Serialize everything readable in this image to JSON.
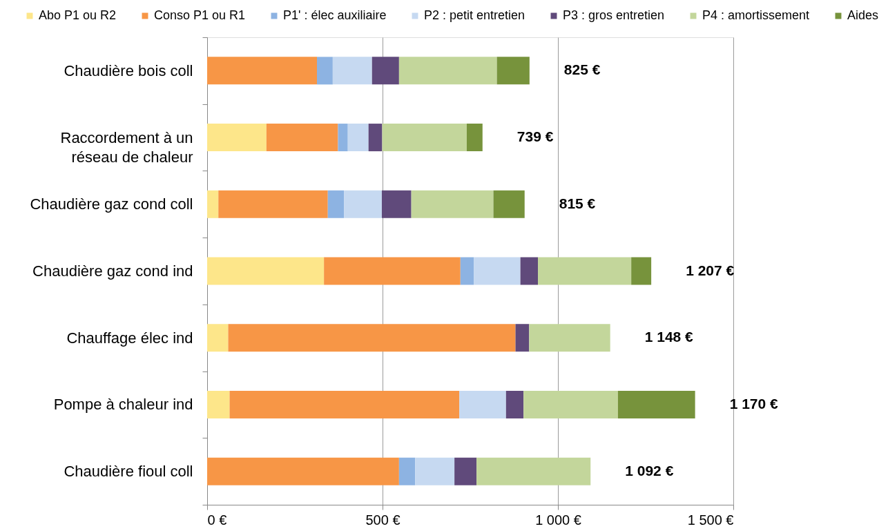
{
  "chart_data": {
    "type": "bar",
    "orientation": "horizontal",
    "stacked": true,
    "categories": [
      "Chaudière bois coll",
      "Raccordement à un réseau de chaleur",
      "Chaudière gaz cond coll",
      "Chaudière gaz cond ind",
      "Chauffage élec ind",
      "Pompe à chaleur ind",
      "Chaudière fioul coll"
    ],
    "series": [
      {
        "name": "Abo P1 ou R2",
        "color": "#fde68a",
        "values": [
          null,
          169,
          32,
          333,
          60,
          64,
          null
        ]
      },
      {
        "name": "Conso P1 ou R1",
        "color": "#f79646",
        "values": [
          313,
          204,
          312,
          389,
          819,
          655,
          547
        ]
      },
      {
        "name": "P1' : élec auxiliaire",
        "color": "#8db3e2",
        "values": [
          45,
          28,
          46,
          38,
          null,
          null,
          46
        ]
      },
      {
        "name": "P2 : petit entretien",
        "color": "#c6d9f1",
        "values": [
          112,
          59,
          108,
          133,
          null,
          133,
          112
        ]
      },
      {
        "name": "P3 : gros entretien",
        "color": "#604a7b",
        "values": [
          77,
          39,
          84,
          50,
          39,
          50,
          63
        ]
      },
      {
        "name": "P4 : amortissement",
        "color": "#c3d69b",
        "values": [
          279,
          241,
          234,
          266,
          231,
          269,
          325
        ]
      },
      {
        "name": "Aides",
        "color": "#77933c",
        "values": [
          93,
          45,
          89,
          57,
          null,
          220,
          null
        ]
      }
    ],
    "annotations": [
      "825 €",
      "739 €",
      "815 €",
      "1 207 €",
      "1 148 €",
      "1 170 €",
      "1 092 €"
    ],
    "xlim": [
      0,
      1500
    ],
    "xticks": [
      {
        "value": 0,
        "label": "0 €"
      },
      {
        "value": 500,
        "label": "500 €"
      },
      {
        "value": 1000,
        "label": "1 000 €"
      },
      {
        "value": 1500,
        "label": "1 500 €"
      }
    ],
    "grid": "x",
    "legend": "top"
  }
}
